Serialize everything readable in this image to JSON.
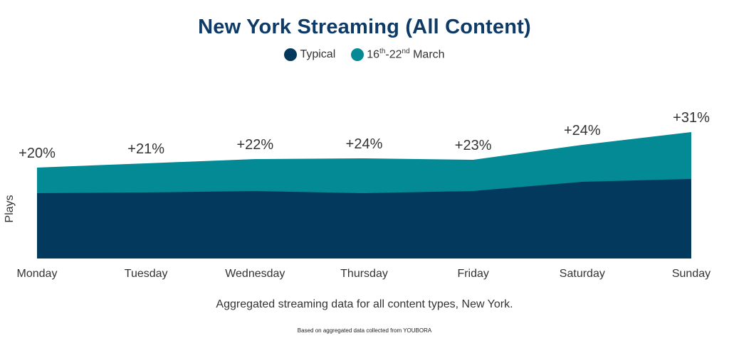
{
  "chart_data": {
    "type": "area",
    "title": "New York Streaming (All Content)",
    "ylabel": "Plays",
    "xlabel": "",
    "categories": [
      "Monday",
      "Tuesday",
      "Wednesday",
      "Thursday",
      "Friday",
      "Saturday",
      "Sunday"
    ],
    "series": [
      {
        "name": "Typical",
        "values": [
          92,
          93,
          95,
          92,
          95,
          108,
          112
        ],
        "color": "#03395c"
      },
      {
        "name": "16th-22nd March",
        "values": [
          128,
          134,
          140,
          141,
          139,
          160,
          178
        ],
        "color": "#038a94"
      }
    ],
    "annotations": [
      "+20%",
      "+21%",
      "+22%",
      "+24%",
      "+23%",
      "+24%",
      "+31%"
    ],
    "ylim": [
      0,
      180
    ],
    "grid": false,
    "legend_position": "top-center"
  },
  "legend": {
    "typical": "Typical",
    "march_prefix": "16",
    "march_sup1": "th",
    "march_mid": "-22",
    "march_sup2": "nd",
    "march_suffix": " March"
  },
  "caption": "Aggregated streaming data for all content types, New York.",
  "footnote": "Based on aggregated data collected from YOUBORA"
}
